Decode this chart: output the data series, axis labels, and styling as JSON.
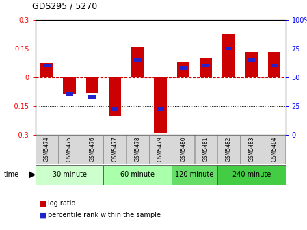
{
  "title": "GDS295 / 5270",
  "samples": [
    "GSM5474",
    "GSM5475",
    "GSM5476",
    "GSM5477",
    "GSM5478",
    "GSM5479",
    "GSM5480",
    "GSM5481",
    "GSM5482",
    "GSM5483",
    "GSM5484"
  ],
  "log_ratio": [
    0.075,
    -0.09,
    -0.085,
    -0.205,
    0.155,
    -0.295,
    0.08,
    0.1,
    0.225,
    0.13,
    0.13
  ],
  "percentile": [
    60,
    35,
    33,
    22,
    65,
    22,
    58,
    60,
    75,
    65,
    60
  ],
  "groups": [
    {
      "label": "30 minute",
      "start": 0,
      "end": 2,
      "color": "#ccffcc"
    },
    {
      "label": "60 minute",
      "start": 3,
      "end": 5,
      "color": "#aaffaa"
    },
    {
      "label": "120 minute",
      "start": 6,
      "end": 7,
      "color": "#66dd66"
    },
    {
      "label": "240 minute",
      "start": 8,
      "end": 10,
      "color": "#44cc44"
    }
  ],
  "ylim": [
    -0.3,
    0.3
  ],
  "yticks_left": [
    -0.3,
    -0.15,
    0,
    0.15,
    0.3
  ],
  "yticks_right": [
    0,
    25,
    50,
    75,
    100
  ],
  "bar_color": "#cc0000",
  "percentile_color": "#2222cc",
  "bar_width": 0.55,
  "percentile_bar_width": 0.32,
  "percentile_bar_height": 0.018
}
